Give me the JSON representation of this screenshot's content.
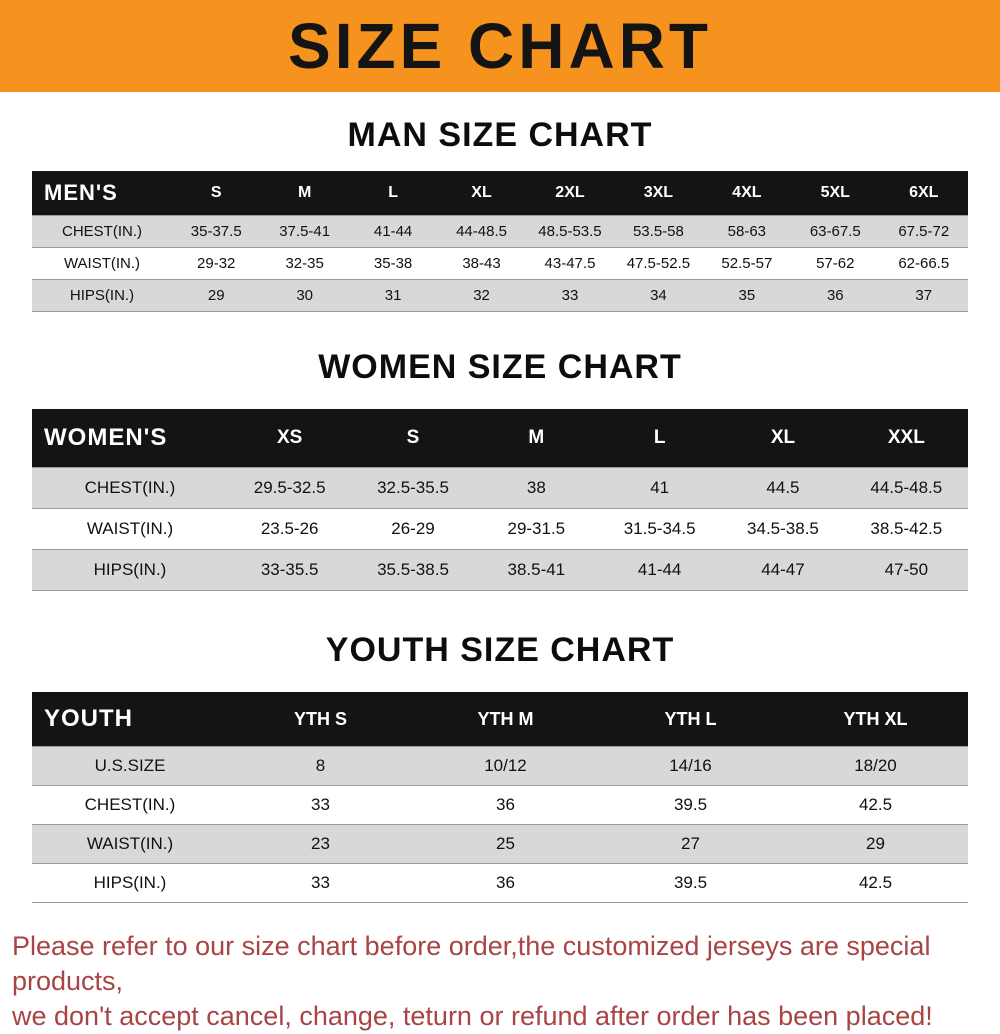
{
  "colors": {
    "banner_bg": "#f6921e",
    "header_bg": "#141414",
    "row_alt_bg": "#d8d8d8",
    "notice_text": "#a94444"
  },
  "banner": {
    "title": "SIZE CHART"
  },
  "chart_data": [
    {
      "type": "table",
      "title": "MAN SIZE CHART",
      "header_label": "MEN'S",
      "columns": [
        "S",
        "M",
        "L",
        "XL",
        "2XL",
        "3XL",
        "4XL",
        "5XL",
        "6XL"
      ],
      "rows": [
        {
          "label": "CHEST(IN.)",
          "values": [
            "35-37.5",
            "37.5-41",
            "41-44",
            "44-48.5",
            "48.5-53.5",
            "53.5-58",
            "58-63",
            "63-67.5",
            "67.5-72"
          ]
        },
        {
          "label": "WAIST(IN.)",
          "values": [
            "29-32",
            "32-35",
            "35-38",
            "38-43",
            "43-47.5",
            "47.5-52.5",
            "52.5-57",
            "57-62",
            "62-66.5"
          ]
        },
        {
          "label": "HIPS(IN.)",
          "values": [
            "29",
            "30",
            "31",
            "32",
            "33",
            "34",
            "35",
            "36",
            "37"
          ]
        }
      ]
    },
    {
      "type": "table",
      "title": "WOMEN SIZE CHART",
      "header_label": "WOMEN'S",
      "columns": [
        "XS",
        "S",
        "M",
        "L",
        "XL",
        "XXL"
      ],
      "rows": [
        {
          "label": "CHEST(IN.)",
          "values": [
            "29.5-32.5",
            "32.5-35.5",
            "38",
            "41",
            "44.5",
            "44.5-48.5"
          ]
        },
        {
          "label": "WAIST(IN.)",
          "values": [
            "23.5-26",
            "26-29",
            "29-31.5",
            "31.5-34.5",
            "34.5-38.5",
            "38.5-42.5"
          ]
        },
        {
          "label": "HIPS(IN.)",
          "values": [
            "33-35.5",
            "35.5-38.5",
            "38.5-41",
            "41-44",
            "44-47",
            "47-50"
          ]
        }
      ]
    },
    {
      "type": "table",
      "title": "YOUTH SIZE CHART",
      "header_label": "YOUTH",
      "columns": [
        "YTH S",
        "YTH M",
        "YTH L",
        "YTH XL"
      ],
      "rows": [
        {
          "label": "U.S.SIZE",
          "values": [
            "8",
            "10/12",
            "14/16",
            "18/20"
          ]
        },
        {
          "label": "CHEST(IN.)",
          "values": [
            "33",
            "36",
            "39.5",
            "42.5"
          ]
        },
        {
          "label": "WAIST(IN.)",
          "values": [
            "23",
            "25",
            "27",
            "29"
          ]
        },
        {
          "label": "HIPS(IN.)",
          "values": [
            "33",
            "36",
            "39.5",
            "42.5"
          ]
        }
      ]
    }
  ],
  "footer": {
    "line1": "Please refer to our size chart before order,the customized jerseys are special products,",
    "line2": "we don't accept cancel, change, teturn or refund after order has been placed!"
  }
}
